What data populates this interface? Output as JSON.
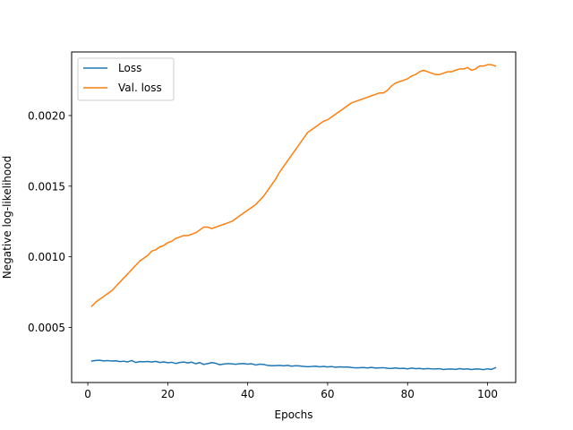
{
  "chart_data": {
    "type": "line",
    "title": "",
    "xlabel": "Epochs",
    "ylabel": "Negative log-likelihood",
    "xlim": [
      -4.05,
      107.05
    ],
    "ylim": [
      0.00011,
      0.00245
    ],
    "xticks": [
      0,
      20,
      40,
      60,
      80,
      100
    ],
    "yticks": [
      0.0005,
      0.001,
      0.0015,
      0.002
    ],
    "xtick_labels": [
      "0",
      "20",
      "40",
      "60",
      "80",
      "100"
    ],
    "ytick_labels": [
      "0.0005",
      "0.0010",
      "0.0015",
      "0.0020"
    ],
    "grid": false,
    "legend_position": "upper-left",
    "x": [
      1,
      2,
      3,
      4,
      5,
      6,
      7,
      8,
      9,
      10,
      11,
      12,
      13,
      14,
      15,
      16,
      17,
      18,
      19,
      20,
      21,
      22,
      23,
      24,
      25,
      26,
      27,
      28,
      29,
      30,
      31,
      32,
      33,
      34,
      35,
      36,
      37,
      38,
      39,
      40,
      41,
      42,
      43,
      44,
      45,
      46,
      47,
      48,
      49,
      50,
      51,
      52,
      53,
      54,
      55,
      56,
      57,
      58,
      59,
      60,
      61,
      62,
      63,
      64,
      65,
      66,
      67,
      68,
      69,
      70,
      71,
      72,
      73,
      74,
      75,
      76,
      77,
      78,
      79,
      80,
      81,
      82,
      83,
      84,
      85,
      86,
      87,
      88,
      89,
      90,
      91,
      92,
      93,
      94,
      95,
      96,
      97,
      98,
      99,
      100,
      101,
      102
    ],
    "series": [
      {
        "name": "Loss",
        "color": "#1f77b4",
        "values": [
          0.000262,
          0.000266,
          0.000268,
          0.000263,
          0.000265,
          0.000262,
          0.000264,
          0.000258,
          0.000261,
          0.000256,
          0.000266,
          0.000252,
          0.000258,
          0.000257,
          0.000259,
          0.000255,
          0.00026,
          0.000252,
          0.000256,
          0.00025,
          0.000253,
          0.000245,
          0.000252,
          0.000255,
          0.000249,
          0.000254,
          0.000243,
          0.000251,
          0.000238,
          0.000244,
          0.000251,
          0.000246,
          0.000236,
          0.000241,
          0.000244,
          0.000242,
          0.000239,
          0.000243,
          0.000244,
          0.00024,
          0.000243,
          0.000234,
          0.00024,
          0.000238,
          0.000231,
          0.000229,
          0.00023,
          0.000231,
          0.000228,
          0.000231,
          0.000226,
          0.000229,
          0.000227,
          0.000224,
          0.000222,
          0.000223,
          0.000226,
          0.000221,
          0.000224,
          0.00022,
          0.000223,
          0.000218,
          0.000221,
          0.000219,
          0.00022,
          0.000216,
          0.000214,
          0.000215,
          0.000216,
          0.000213,
          0.000217,
          0.000212,
          0.000214,
          0.000215,
          0.000211,
          0.00021,
          0.000213,
          0.000209,
          0.000211,
          0.000207,
          0.000212,
          0.000208,
          0.00021,
          0.000206,
          0.000209,
          0.000207,
          0.000206,
          0.000208,
          0.000202,
          0.000205,
          0.000206,
          0.000203,
          0.000208,
          0.000204,
          0.000207,
          0.000202,
          0.000206,
          0.000205,
          0.000201,
          0.000207,
          0.000203,
          0.000215
        ]
      },
      {
        "name": "Val. loss",
        "color": "#ff7f0e",
        "values": [
          0.00065,
          0.00068,
          0.0007,
          0.00072,
          0.00074,
          0.00076,
          0.00079,
          0.00082,
          0.00085,
          0.00088,
          0.00091,
          0.00094,
          0.00097,
          0.00099,
          0.00101,
          0.00104,
          0.00105,
          0.00107,
          0.00108,
          0.0011,
          0.00111,
          0.00113,
          0.00114,
          0.00115,
          0.00115,
          0.00116,
          0.00117,
          0.00119,
          0.00121,
          0.00121,
          0.0012,
          0.00121,
          0.00122,
          0.00123,
          0.00124,
          0.00125,
          0.00127,
          0.00129,
          0.00131,
          0.00133,
          0.00135,
          0.00137,
          0.0014,
          0.00143,
          0.00147,
          0.00151,
          0.00155,
          0.0016,
          0.00164,
          0.00168,
          0.00172,
          0.00176,
          0.0018,
          0.00184,
          0.00188,
          0.0019,
          0.00192,
          0.00194,
          0.00196,
          0.00197,
          0.00199,
          0.00201,
          0.00203,
          0.00205,
          0.00207,
          0.00209,
          0.0021,
          0.00211,
          0.00212,
          0.00213,
          0.00214,
          0.00215,
          0.00216,
          0.00216,
          0.00218,
          0.00221,
          0.00223,
          0.00224,
          0.00225,
          0.00226,
          0.00228,
          0.00229,
          0.00231,
          0.00232,
          0.00231,
          0.0023,
          0.00229,
          0.00229,
          0.0023,
          0.00231,
          0.00231,
          0.00232,
          0.00233,
          0.00233,
          0.00234,
          0.00232,
          0.00233,
          0.00235,
          0.00235,
          0.00236,
          0.00236,
          0.00235
        ]
      }
    ]
  }
}
